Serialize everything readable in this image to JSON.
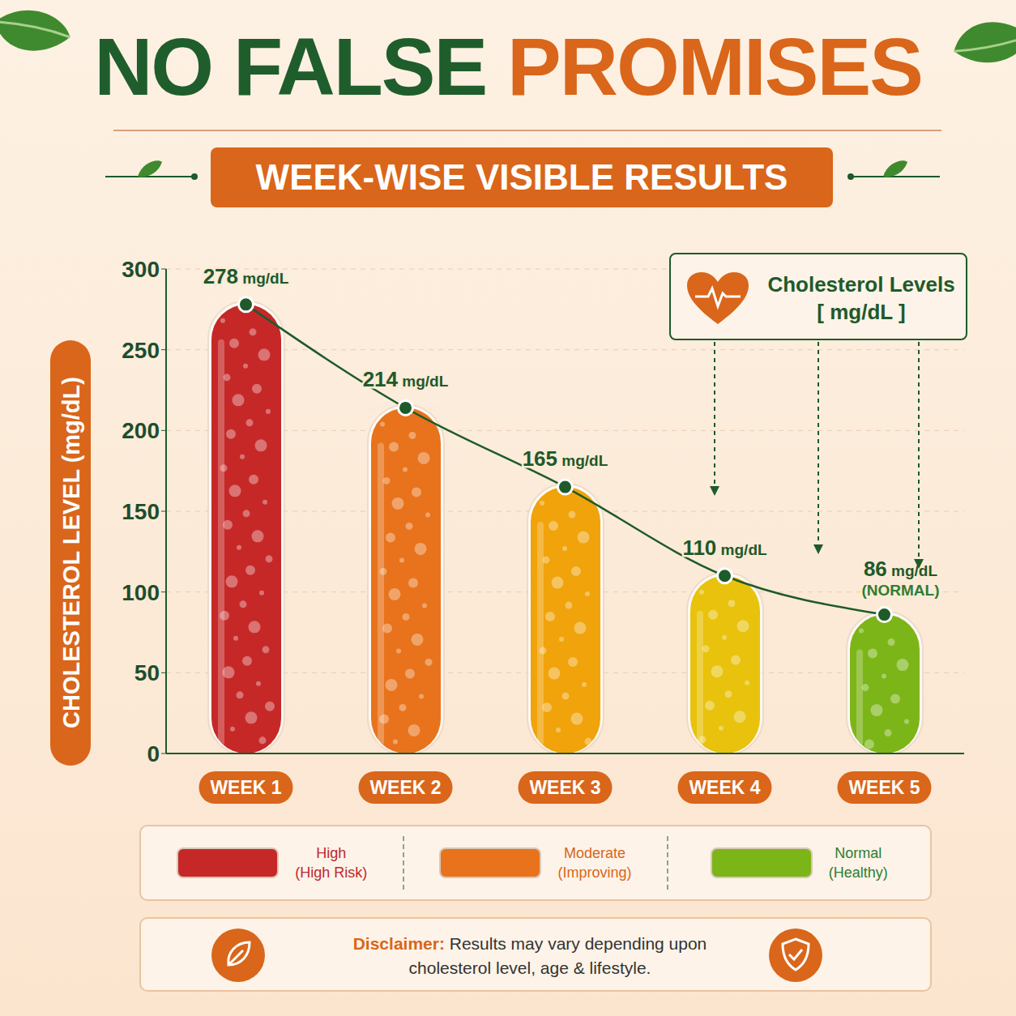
{
  "chart_data": {
    "type": "bar",
    "title": "NO FALSE PROMISES",
    "subtitle": "WEEK-WISE VISIBLE RESULTS",
    "y_label": "CHOLESTEROL LEVEL (mg/dL)",
    "categories": [
      "WEEK 1",
      "WEEK 2",
      "WEEK 3",
      "WEEK 4",
      "WEEK 5"
    ],
    "series": [
      {
        "name": "Cholesterol Levels",
        "type": "bar",
        "values": [
          278,
          214,
          165,
          110,
          86
        ],
        "value_labels": [
          "278 mg/dL",
          "214 mg/dL",
          "165 mg/dL",
          "110 mg/dL",
          "86 mg/dL"
        ],
        "colors": [
          "#c62828",
          "#e8731c",
          "#f0a30a",
          "#e8c20c",
          "#7cb518"
        ],
        "marker": "circle",
        "line_style": "solid"
      }
    ],
    "unit_label": "[ mg/dL ]",
    "annotations": [
      {
        "text": "(NORMAL)",
        "category": "WEEK 5"
      }
    ],
    "ylim": [
      0,
      300
    ],
    "yticks": [
      0,
      50,
      100,
      150,
      200,
      250,
      300
    ],
    "grid": true,
    "data_labels": true,
    "legend": "upper right",
    "status_legend": [
      {
        "label": "High",
        "sublabel": "(High Risk)",
        "color": "#c62828"
      },
      {
        "label": "Moderate",
        "sublabel": "(Improving)",
        "color": "#e8731c"
      },
      {
        "label": "Normal",
        "sublabel": "(Healthy)",
        "color": "#7cb518"
      }
    ],
    "disclaimer": {
      "label": "Disclaimer:",
      "text": "Results may vary depending upon cholesterol level, age & lifestyle."
    }
  }
}
